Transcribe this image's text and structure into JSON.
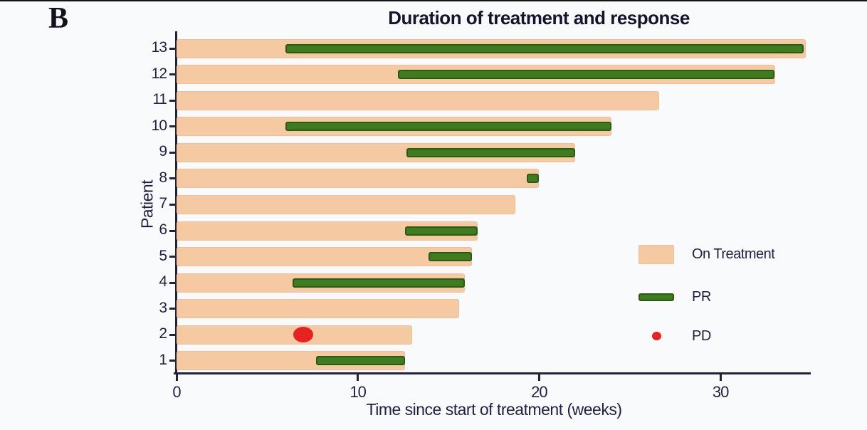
{
  "figure_label": "B",
  "title": "Duration of treatment and response",
  "xlabel": "Time since start of treatment (weeks)",
  "ylabel": "Patient",
  "colors": {
    "background": "#f9fafc",
    "on_treatment": "#f5c9a2",
    "on_treatment_border": "#eec09a",
    "pr": "#3d7c1f",
    "pr_border": "#2c5a13",
    "pd": "#e62320",
    "axis": "#24223a",
    "text": "#221f45",
    "title_text": "#16142c"
  },
  "chart_data": {
    "type": "bar",
    "orientation": "horizontal",
    "title": "Duration of treatment and response",
    "xlabel": "Time since start of treatment (weeks)",
    "ylabel": "Patient",
    "x_ticks": [
      0,
      10,
      20,
      30
    ],
    "x_range": [
      0,
      35
    ],
    "grid": false,
    "legend_position": "right-middle",
    "patients": [
      {
        "id": 13,
        "treatment_start": 0,
        "treatment_end": 34.7,
        "pr_start": 6.0,
        "pr_end": 34.6
      },
      {
        "id": 12,
        "treatment_start": 0,
        "treatment_end": 33.0,
        "pr_start": 12.2,
        "pr_end": 33.0
      },
      {
        "id": 11,
        "treatment_start": 0,
        "treatment_end": 26.6
      },
      {
        "id": 10,
        "treatment_start": 0,
        "treatment_end": 24.0,
        "pr_start": 6.0,
        "pr_end": 24.0
      },
      {
        "id": 9,
        "treatment_start": 0,
        "treatment_end": 22.0,
        "pr_start": 12.7,
        "pr_end": 22.0
      },
      {
        "id": 8,
        "treatment_start": 0,
        "treatment_end": 20.0,
        "pr_start": 19.3,
        "pr_end": 20.0
      },
      {
        "id": 7,
        "treatment_start": 0,
        "treatment_end": 18.7
      },
      {
        "id": 6,
        "treatment_start": 0,
        "treatment_end": 16.6,
        "pr_start": 12.6,
        "pr_end": 16.6
      },
      {
        "id": 5,
        "treatment_start": 0,
        "treatment_end": 16.3,
        "pr_start": 13.9,
        "pr_end": 16.3
      },
      {
        "id": 4,
        "treatment_start": 0,
        "treatment_end": 15.9,
        "pr_start": 6.4,
        "pr_end": 15.9
      },
      {
        "id": 3,
        "treatment_start": 0,
        "treatment_end": 15.6
      },
      {
        "id": 2,
        "treatment_start": 0,
        "treatment_end": 13.0,
        "pd_at": 7.0
      },
      {
        "id": 1,
        "treatment_start": 0,
        "treatment_end": 12.6,
        "pr_start": 7.7,
        "pr_end": 12.6
      }
    ],
    "legend": [
      {
        "swatch": "on-treatment",
        "label": "On Treatment"
      },
      {
        "swatch": "pr",
        "label": "PR"
      },
      {
        "swatch": "pd",
        "label": "PD"
      }
    ]
  }
}
